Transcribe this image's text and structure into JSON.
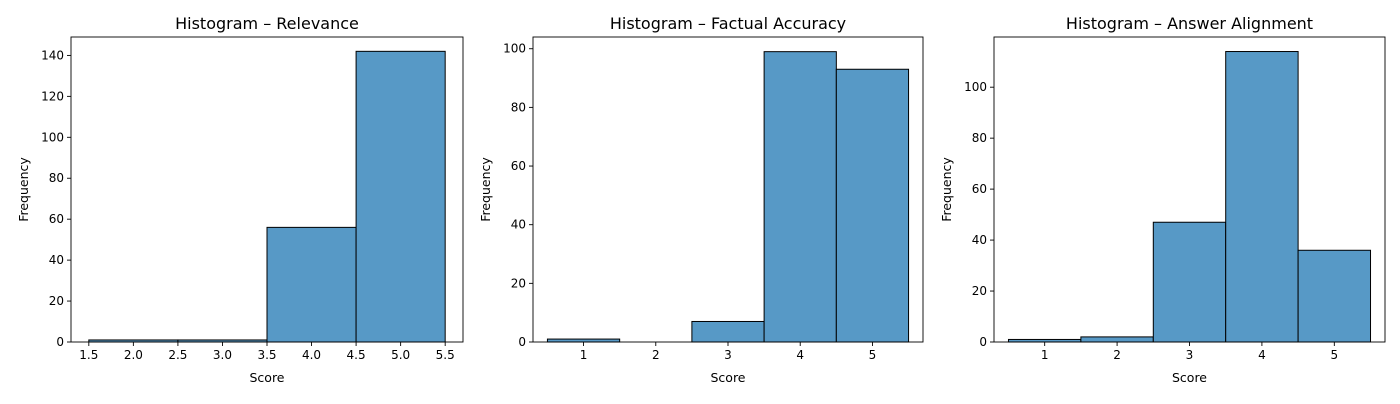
{
  "chart_data": [
    {
      "type": "bar",
      "title": "Histogram – Relevance",
      "xlabel": "Score",
      "ylabel": "Frequency",
      "bins": [
        [
          1.5,
          2.5
        ],
        [
          2.5,
          3.5
        ],
        [
          3.5,
          4.5
        ],
        [
          4.5,
          5.5
        ]
      ],
      "values": [
        1,
        1,
        56,
        142
      ],
      "xlim": [
        1.3,
        5.7
      ],
      "ylim": [
        0,
        149
      ],
      "xticks": [
        1.5,
        2.0,
        2.5,
        3.0,
        3.5,
        4.0,
        4.5,
        5.0,
        5.5
      ],
      "xtick_labels": [
        "1.5",
        "2.0",
        "2.5",
        "3.0",
        "3.5",
        "4.0",
        "4.5",
        "5.0",
        "5.5"
      ],
      "yticks": [
        0,
        20,
        40,
        60,
        80,
        100,
        120,
        140
      ],
      "ytick_labels": [
        "0",
        "20",
        "40",
        "60",
        "80",
        "100",
        "120",
        "140"
      ],
      "grid": false,
      "color": "#5799c6"
    },
    {
      "type": "bar",
      "title": "Histogram – Factual Accuracy",
      "xlabel": "Score",
      "ylabel": "Frequency",
      "bins": [
        [
          0.5,
          1.5
        ],
        [
          1.5,
          2.5
        ],
        [
          2.5,
          3.5
        ],
        [
          3.5,
          4.5
        ],
        [
          4.5,
          5.5
        ]
      ],
      "values": [
        1,
        0,
        7,
        99,
        93
      ],
      "xlim": [
        0.3,
        5.7
      ],
      "ylim": [
        0,
        104
      ],
      "xticks": [
        1,
        2,
        3,
        4,
        5
      ],
      "xtick_labels": [
        "1",
        "2",
        "3",
        "4",
        "5"
      ],
      "yticks": [
        0,
        20,
        40,
        60,
        80,
        100
      ],
      "ytick_labels": [
        "0",
        "20",
        "40",
        "60",
        "80",
        "100"
      ],
      "grid": false,
      "color": "#5799c6"
    },
    {
      "type": "bar",
      "title": "Histogram – Answer Alignment",
      "xlabel": "Score",
      "ylabel": "Frequency",
      "bins": [
        [
          0.5,
          1.5
        ],
        [
          1.5,
          2.5
        ],
        [
          2.5,
          3.5
        ],
        [
          3.5,
          4.5
        ],
        [
          4.5,
          5.5
        ]
      ],
      "values": [
        1,
        2,
        47,
        114,
        36
      ],
      "xlim": [
        0.3,
        5.7
      ],
      "ylim": [
        0,
        119.7
      ],
      "xticks": [
        1,
        2,
        3,
        4,
        5
      ],
      "xtick_labels": [
        "1",
        "2",
        "3",
        "4",
        "5"
      ],
      "yticks": [
        0,
        20,
        40,
        60,
        80,
        100
      ],
      "ytick_labels": [
        "0",
        "20",
        "40",
        "60",
        "80",
        "100"
      ],
      "grid": false,
      "color": "#5799c6"
    }
  ]
}
